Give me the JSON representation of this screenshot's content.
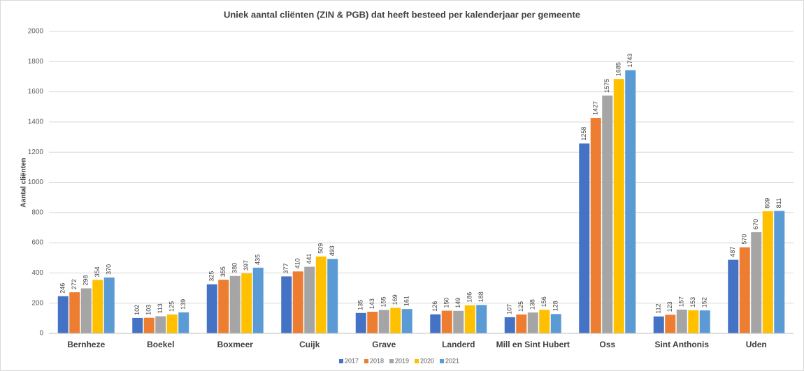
{
  "chart_data": {
    "type": "bar",
    "title": "Uniek aantal cliënten (ZIN & PGB) dat heeft besteed per kalenderjaar per gemeente",
    "y_label": "Aantal cliënten",
    "categories": [
      "Bernheze",
      "Boekel",
      "Boxmeer",
      "Cuijk",
      "Grave",
      "Landerd",
      "Mill en Sint Hubert",
      "Oss",
      "Sint Anthonis",
      "Uden"
    ],
    "series": [
      {
        "name": "2017",
        "color": "#4472c4",
        "values": [
          246,
          102,
          325,
          377,
          135,
          126,
          107,
          1258,
          112,
          487
        ]
      },
      {
        "name": "2018",
        "color": "#ed7d31",
        "values": [
          272,
          103,
          355,
          410,
          143,
          150,
          125,
          1427,
          123,
          570
        ]
      },
      {
        "name": "2019",
        "color": "#a5a5a5",
        "values": [
          298,
          113,
          380,
          441,
          155,
          149,
          138,
          1575,
          157,
          670
        ]
      },
      {
        "name": "2020",
        "color": "#ffc000",
        "values": [
          354,
          125,
          397,
          509,
          169,
          186,
          156,
          1685,
          153,
          809
        ]
      },
      {
        "name": "2021",
        "color": "#5b9bd5",
        "values": [
          370,
          139,
          435,
          493,
          161,
          188,
          128,
          1743,
          152,
          811
        ]
      }
    ],
    "ylim": [
      0,
      2000
    ],
    "yticks": [
      0,
      200,
      400,
      600,
      800,
      1000,
      1200,
      1400,
      1600,
      1800,
      2000
    ],
    "grid": true,
    "legend": "bottom"
  }
}
